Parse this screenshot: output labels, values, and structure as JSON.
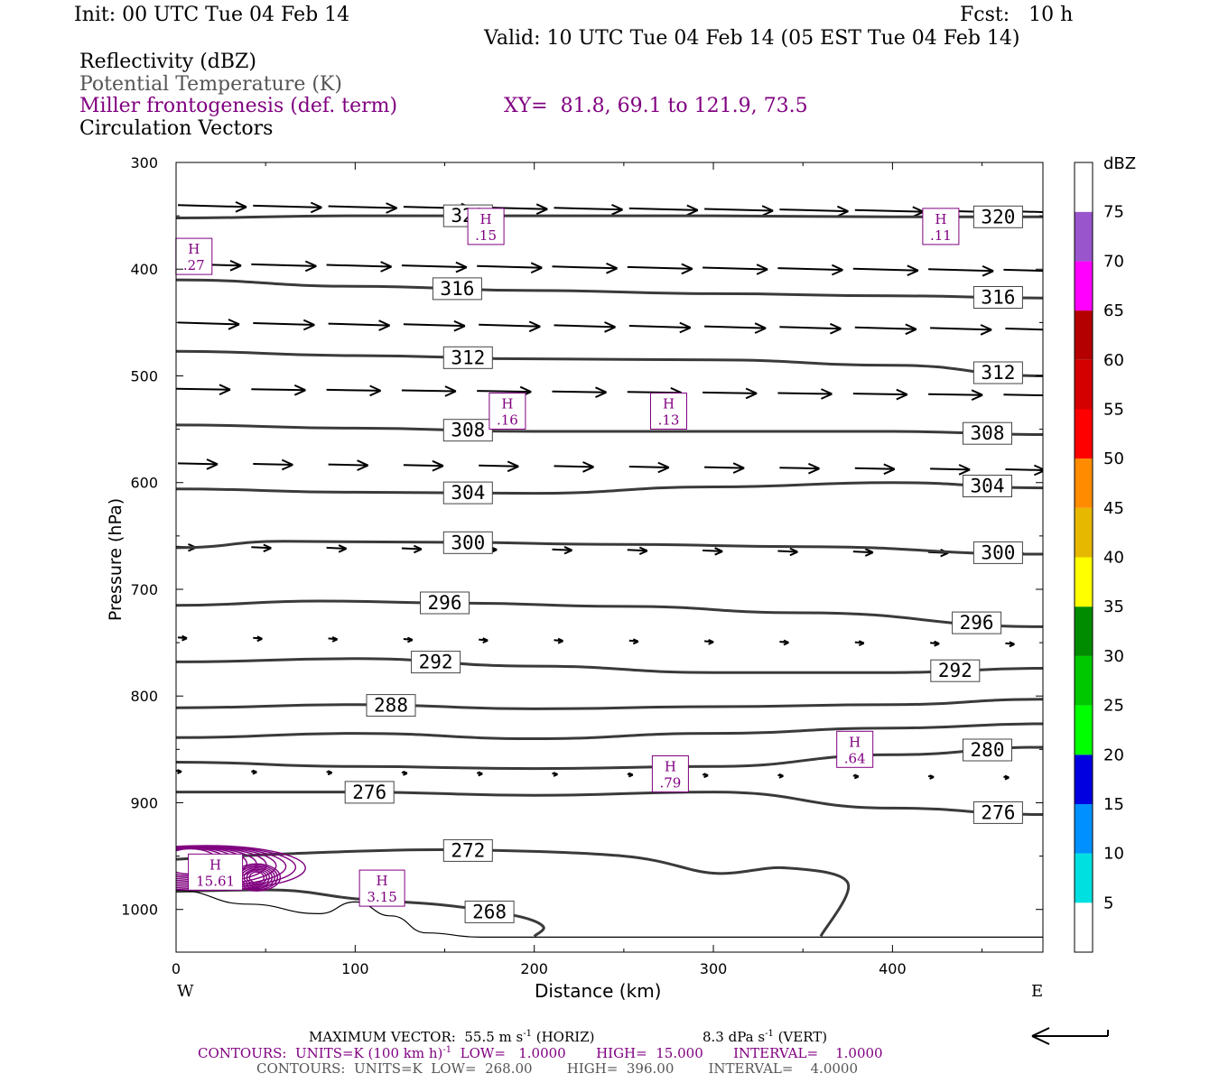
{
  "header": {
    "init": "Init: 00 UTC Tue 04 Feb 14",
    "fcst": "Fcst:   10 h",
    "valid": "Valid: 10 UTC Tue 04 Feb 14 (05 EST Tue 04 Feb 14)"
  },
  "legend": {
    "line1": "Reflectivity (dBZ)",
    "line2": "Potential Temperature (K)",
    "line3": "Miller frontogenesis (def. term)",
    "xy": "XY=  81.8, 69.1 to 121.9, 73.5",
    "line4": "Circulation Vectors"
  },
  "colors": {
    "purple": "#800080",
    "isentrope": "#3a3a3a",
    "frame": "#000000"
  },
  "chart_data": {
    "type": "cross-section",
    "ylabel": "Pressure (hPa)",
    "xlabel": "Distance (km)",
    "x_range": [
      0,
      484
    ],
    "y_range": [
      300,
      1040
    ],
    "y_scale": "linear-inverted",
    "x_ticks": [
      "0",
      "100",
      "200",
      "300",
      "400"
    ],
    "y_ticks": [
      "300",
      "400",
      "500",
      "600",
      "700",
      "800",
      "900",
      "1000"
    ],
    "left_end": "W",
    "right_end": "E",
    "isentropes": [
      {
        "theta": 320,
        "x": [
          0,
          100,
          200,
          300,
          400,
          484
        ],
        "p": [
          352,
          350,
          350,
          350,
          351,
          351
        ],
        "labels": [
          {
            "x": 163,
            "text": "320"
          },
          {
            "x": 459,
            "text": "320"
          }
        ]
      },
      {
        "theta": 316,
        "x": [
          0,
          100,
          200,
          300,
          400,
          484
        ],
        "p": [
          410,
          416,
          420,
          423,
          425,
          427
        ],
        "labels": [
          {
            "x": 157,
            "text": "316"
          },
          {
            "x": 459,
            "text": "316"
          }
        ]
      },
      {
        "theta": 312,
        "x": [
          0,
          100,
          200,
          300,
          400,
          484
        ],
        "p": [
          477,
          481,
          484,
          485,
          490,
          500
        ],
        "labels": [
          {
            "x": 163,
            "text": "312"
          },
          {
            "x": 459,
            "text": "312"
          }
        ]
      },
      {
        "theta": 308,
        "x": [
          0,
          100,
          200,
          300,
          400,
          484
        ],
        "p": [
          546,
          549,
          552,
          552,
          552,
          555
        ],
        "labels": [
          {
            "x": 163,
            "text": "308"
          },
          {
            "x": 453,
            "text": "308"
          }
        ]
      },
      {
        "theta": 304,
        "x": [
          0,
          100,
          200,
          300,
          400,
          484
        ],
        "p": [
          606,
          609,
          610,
          604,
          600,
          605
        ],
        "labels": [
          {
            "x": 163,
            "text": "304"
          },
          {
            "x": 453,
            "text": "304"
          }
        ]
      },
      {
        "theta": 300,
        "x": [
          0,
          60,
          150,
          250,
          350,
          484
        ],
        "p": [
          661,
          655,
          656,
          658,
          660,
          667
        ],
        "labels": [
          {
            "x": 163,
            "text": "300"
          },
          {
            "x": 459,
            "text": "300"
          }
        ]
      },
      {
        "theta": 296,
        "x": [
          0,
          80,
          160,
          250,
          350,
          484
        ],
        "p": [
          715,
          711,
          713,
          716,
          722,
          735
        ],
        "labels": [
          {
            "x": 150,
            "text": "296"
          },
          {
            "x": 447,
            "text": "296"
          }
        ]
      },
      {
        "theta": 292,
        "x": [
          0,
          100,
          200,
          300,
          400,
          484
        ],
        "p": [
          768,
          765,
          772,
          778,
          778,
          774
        ],
        "labels": [
          {
            "x": 145,
            "text": "292"
          },
          {
            "x": 435,
            "text": "292"
          }
        ]
      },
      {
        "theta": 288,
        "x": [
          0,
          100,
          200,
          300,
          400,
          484
        ],
        "p": [
          811,
          808,
          812,
          810,
          808,
          803
        ],
        "labels": [
          {
            "x": 120,
            "text": "288"
          }
        ]
      },
      {
        "theta": 284,
        "x": [
          0,
          100,
          200,
          300,
          400,
          484
        ],
        "p": [
          839,
          835,
          840,
          835,
          830,
          826
        ],
        "labels": []
      },
      {
        "theta": 280,
        "x": [
          0,
          100,
          200,
          300,
          400,
          484
        ],
        "p": [
          862,
          866,
          868,
          866,
          855,
          848
        ],
        "labels": [
          {
            "x": 453,
            "text": "280"
          }
        ]
      },
      {
        "theta": 276,
        "x": [
          0,
          100,
          200,
          300,
          400,
          484
        ],
        "p": [
          890,
          890,
          893,
          890,
          905,
          911
        ],
        "labels": [
          {
            "x": 108,
            "text": "276"
          },
          {
            "x": 459,
            "text": "276"
          }
        ]
      },
      {
        "theta": 272,
        "x": [
          0,
          60,
          150,
          250,
          300,
          340,
          375,
          360
        ],
        "p": [
          953,
          948,
          944,
          950,
          966,
          961,
          975,
          1025
        ],
        "labels": [
          {
            "x": 163,
            "text": "272"
          }
        ]
      },
      {
        "theta": 268,
        "x": [
          0,
          60,
          100,
          150,
          190,
          205,
          200
        ],
        "p": [
          983,
          982,
          990,
          996,
          1006,
          1016,
          1025
        ],
        "labels": [
          {
            "x": 175,
            "text": "268"
          }
        ]
      }
    ],
    "surface": {
      "x": [
        0,
        40,
        80,
        100,
        120,
        140,
        170,
        484
      ],
      "p": [
        982,
        995,
        1004,
        993,
        1006,
        1022,
        1026,
        1026
      ]
    },
    "frontogenesis_maxima": [
      {
        "x": 10,
        "p": 388,
        "value": ".27"
      },
      {
        "x": 173,
        "p": 360,
        "value": ".15"
      },
      {
        "x": 427,
        "p": 360,
        "value": ".11"
      },
      {
        "x": 185,
        "p": 533,
        "value": ".16"
      },
      {
        "x": 275,
        "p": 533,
        "value": ".13"
      },
      {
        "x": 379,
        "p": 850,
        "value": ".64"
      },
      {
        "x": 276,
        "p": 873,
        "value": ".79"
      },
      {
        "x": 22,
        "p": 965,
        "value": "15.61"
      },
      {
        "x": 115,
        "p": 980,
        "value": "3.15"
      }
    ],
    "vector_rows": [
      {
        "p": 340,
        "len": 38
      },
      {
        "p": 395,
        "len": 36
      },
      {
        "p": 450,
        "len": 34
      },
      {
        "p": 512,
        "len": 30
      },
      {
        "p": 582,
        "len": 22
      },
      {
        "p": 660,
        "len": 11
      },
      {
        "p": 745,
        "len": 5
      },
      {
        "p": 870,
        "len": 3
      }
    ],
    "colorbar": {
      "unit": "dBZ",
      "levels": [
        "5",
        "10",
        "15",
        "20",
        "25",
        "30",
        "35",
        "40",
        "45",
        "50",
        "55",
        "60",
        "65",
        "70",
        "75"
      ],
      "colors": [
        "#ffffff",
        "#00e0e0",
        "#0090ff",
        "#0000e0",
        "#00ff00",
        "#00c800",
        "#008c00",
        "#ffff00",
        "#e6b800",
        "#ff8c00",
        "#ff0000",
        "#d40000",
        "#b40000",
        "#ff00ff",
        "#9955cc",
        "#ffffff"
      ]
    }
  },
  "footer": {
    "max_vector": "MAXIMUM VECTOR:  55.5 m s",
    "max_vector_exp": "-1",
    "max_vector_h": " (HORIZ)",
    "vert": "8.3 dPa s",
    "vert_exp": "-1",
    "vert_v": " (VERT)",
    "contours1a": "CONTOURS:  UNITS=K (100 km h)",
    "contours1_exp": "-1",
    "contours1b": "  LOW=   1.0000       HIGH=  15.000       INTERVAL=    1.0000",
    "contours2": "CONTOURS:  UNITS=K  LOW=  268.00        HIGH=  396.00        INTERVAL=    4.0000"
  }
}
